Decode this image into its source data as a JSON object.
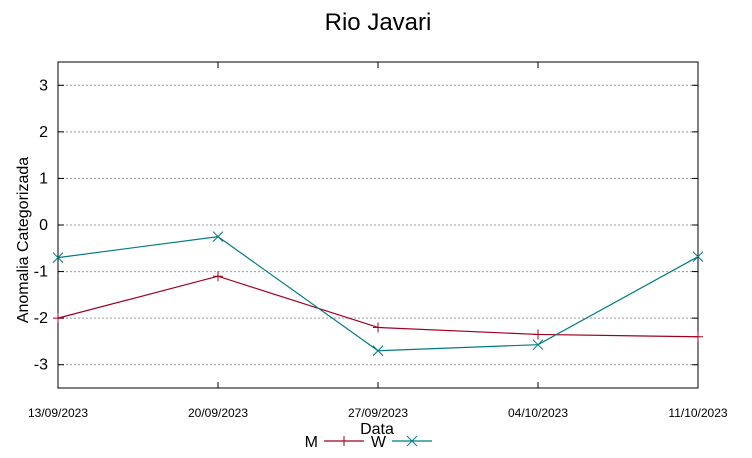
{
  "chart_data": {
    "type": "line",
    "title": "Rio Javari",
    "xlabel": "Data",
    "ylabel": "Anomalia Categorizada",
    "categories": [
      "13/09/2023",
      "20/09/2023",
      "27/09/2023",
      "04/10/2023",
      "11/10/2023"
    ],
    "ylim": [
      -3.5,
      3.5
    ],
    "yticks": [
      -3,
      -2,
      -1,
      0,
      1,
      2,
      3
    ],
    "grid": true,
    "legend_position": "bottom-center",
    "series": [
      {
        "name": "M",
        "color": "#a0001e",
        "marker": "plus",
        "x": [
          0,
          1,
          2,
          3,
          4
        ],
        "values": [
          -2.0,
          -1.1,
          -2.2,
          -2.35,
          -2.4
        ]
      },
      {
        "name": "W",
        "color": "#007b80",
        "marker": "cross",
        "x": [
          0,
          1,
          2,
          3,
          4
        ],
        "values": [
          -0.7,
          -0.25,
          -2.7,
          -2.57,
          -0.68
        ]
      }
    ]
  }
}
